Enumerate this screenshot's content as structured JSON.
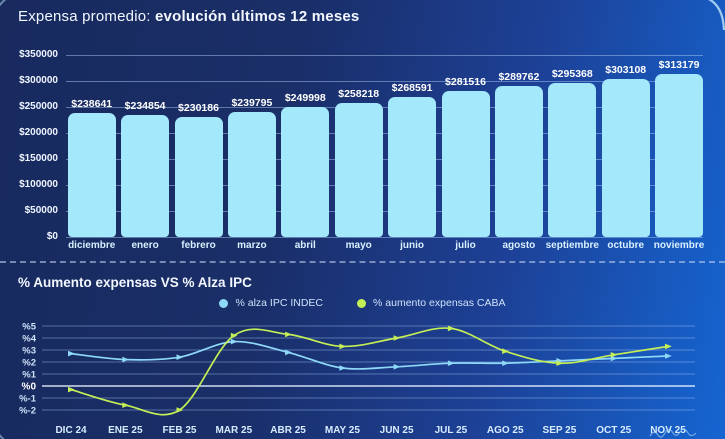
{
  "page": {
    "bar_section_title_prefix": "Expensa promedio: ",
    "bar_section_title_bold": "evolución últimos 12 meses",
    "line_section_title": "% Aumento expensas VS % Alza IPC"
  },
  "legend": {
    "items": [
      {
        "label": "% alza IPC INDEC",
        "color": "#8ed9f8"
      },
      {
        "label": "% aumento expensas CABA",
        "color": "#c3ee55"
      }
    ]
  },
  "colors": {
    "bar_fill": "#a3e8fb",
    "ipc_line": "#8ed9f8",
    "expensas_line": "#c3ee55",
    "bg_dark": "#182a5e",
    "bg_bright": "#1565d2"
  },
  "chart_data": [
    {
      "type": "bar",
      "title": "Expensa promedio: evolución últimos 12 meses",
      "categories": [
        "diciembre",
        "enero",
        "febrero",
        "marzo",
        "abril",
        "mayo",
        "junio",
        "julio",
        "agosto",
        "septiembre",
        "octubre",
        "noviembre"
      ],
      "values": [
        238641,
        234854,
        230186,
        239795,
        249998,
        258218,
        268591,
        281516,
        289762,
        295368,
        303108,
        313179
      ],
      "value_labels": [
        "$238641",
        "$234854",
        "$230186",
        "$239795",
        "$249998",
        "$258218",
        "$268591",
        "$281516",
        "$289762",
        "$295368",
        "$303108",
        "$313179"
      ],
      "ylim": [
        0,
        350000
      ],
      "yticks": [
        0,
        50000,
        100000,
        150000,
        200000,
        250000,
        300000,
        350000
      ],
      "ytick_labels": [
        "$0",
        "$50000",
        "$100000",
        "$150000",
        "$200000",
        "$250000",
        "$300000",
        "$350000"
      ],
      "grid": true,
      "bar_color": "#a3e8fb"
    },
    {
      "type": "line",
      "title": "% Aumento expensas VS % Alza IPC",
      "categories": [
        "DIC 24",
        "ENE 25",
        "FEB 25",
        "MAR 25",
        "ABR 25",
        "MAY 25",
        "JUN 25",
        "JUL 25",
        "AGO 25",
        "SEP 25",
        "OCT 25",
        "NOV 25"
      ],
      "series": [
        {
          "name": "% alza IPC INDEC",
          "color": "#8ed9f8",
          "values": [
            2.7,
            2.2,
            2.4,
            3.7,
            2.8,
            1.5,
            1.6,
            1.9,
            1.9,
            2.1,
            2.3,
            2.5
          ]
        },
        {
          "name": "% aumento expensas CABA",
          "color": "#c3ee55",
          "values": [
            -0.3,
            -1.6,
            -2.0,
            4.2,
            4.3,
            3.3,
            4.0,
            4.8,
            2.9,
            1.9,
            2.6,
            3.3
          ]
        }
      ],
      "ylim": [
        -2,
        5
      ],
      "yticks": [
        5,
        4,
        3,
        2,
        1,
        0,
        -1,
        -2
      ],
      "ytick_labels": [
        "%5",
        "%4",
        "%3",
        "%2",
        "%1",
        "%0",
        "%-1",
        "%-2"
      ],
      "grid": true,
      "legend_position": "top-center"
    }
  ]
}
